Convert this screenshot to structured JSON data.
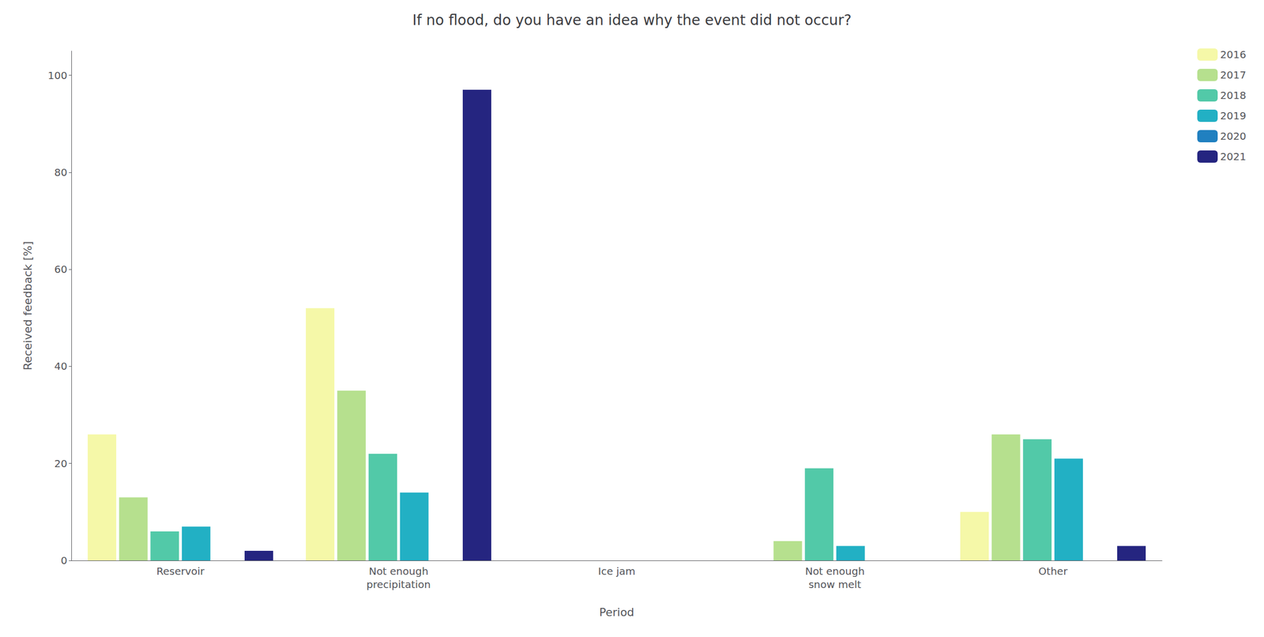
{
  "chart_data": {
    "type": "bar",
    "title": "If no flood, do you have an idea why the event did not occur?",
    "xlabel": "Period",
    "ylabel": "Received feedback [%]",
    "categories": [
      "Reservoir",
      "Not enough\nprecipitation",
      "Ice jam",
      "Not enough\nsnow melt",
      "Other"
    ],
    "series": [
      {
        "name": "2016",
        "color": "#f5f8a8",
        "values": [
          26,
          52,
          0,
          0,
          10
        ]
      },
      {
        "name": "2017",
        "color": "#b6e08e",
        "values": [
          13,
          35,
          0,
          4,
          26
        ]
      },
      {
        "name": "2018",
        "color": "#52c9a8",
        "values": [
          6,
          22,
          0,
          19,
          25
        ]
      },
      {
        "name": "2019",
        "color": "#22b0c4",
        "values": [
          7,
          14,
          0,
          3,
          21
        ]
      },
      {
        "name": "2020",
        "color": "#2080c0",
        "values": [
          0,
          0,
          0,
          0,
          0
        ]
      },
      {
        "name": "2021",
        "color": "#252580",
        "values": [
          2,
          97,
          0,
          0,
          3
        ]
      }
    ],
    "ylim": [
      0,
      105
    ],
    "yticks": [
      0,
      20,
      40,
      60,
      80,
      100
    ],
    "grid": false,
    "legend": "upper right"
  }
}
